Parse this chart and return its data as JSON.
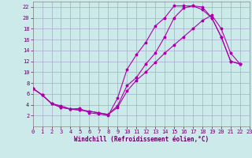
{
  "background_color": "#cceaea",
  "grid_color": "#aaaacc",
  "line_color": "#aa00aa",
  "xlim": [
    0,
    23
  ],
  "ylim": [
    0,
    23
  ],
  "xticks": [
    0,
    1,
    2,
    3,
    4,
    5,
    6,
    7,
    8,
    9,
    10,
    11,
    12,
    13,
    14,
    15,
    16,
    17,
    18,
    19,
    20,
    21,
    22,
    23
  ],
  "yticks": [
    2,
    4,
    6,
    8,
    10,
    12,
    14,
    16,
    18,
    20,
    22
  ],
  "xlabel": "Windchill (Refroidissement éolien,°C)",
  "xlabel_fontsize": 5.5,
  "tick_fontsize": 5.0,
  "line1_x": [
    0,
    1,
    2,
    3,
    4,
    5,
    6,
    7,
    8,
    9,
    10,
    11,
    12,
    13,
    14,
    15,
    16,
    17,
    18,
    19,
    20,
    21,
    22
  ],
  "line1_y": [
    7.0,
    5.8,
    4.2,
    3.8,
    3.2,
    3.3,
    2.5,
    2.3,
    2.0,
    5.2,
    10.5,
    13.2,
    15.5,
    18.5,
    20.0,
    22.2,
    22.2,
    22.2,
    21.5,
    20.0,
    16.5,
    12.0,
    11.5
  ],
  "line2_x": [
    0,
    1,
    2,
    3,
    4,
    5,
    6,
    7,
    8,
    9,
    10,
    11,
    12,
    13,
    14,
    15,
    16,
    17,
    18,
    19,
    20,
    21,
    22
  ],
  "line2_y": [
    7.0,
    5.8,
    4.2,
    3.5,
    3.2,
    3.0,
    2.8,
    2.5,
    2.2,
    3.8,
    7.5,
    9.0,
    11.5,
    13.5,
    16.5,
    20.0,
    21.8,
    22.2,
    22.0,
    20.0,
    16.5,
    12.0,
    11.5
  ],
  "line3_x": [
    0,
    1,
    2,
    3,
    4,
    5,
    6,
    7,
    8,
    9,
    10,
    11,
    12,
    13,
    14,
    15,
    16,
    17,
    18,
    19,
    20,
    21,
    22
  ],
  "line3_y": [
    7.0,
    5.8,
    4.2,
    3.5,
    3.2,
    3.0,
    2.8,
    2.5,
    2.2,
    3.5,
    6.5,
    8.5,
    10.0,
    11.8,
    13.5,
    15.0,
    16.5,
    18.0,
    19.5,
    20.5,
    18.0,
    13.5,
    11.5
  ]
}
